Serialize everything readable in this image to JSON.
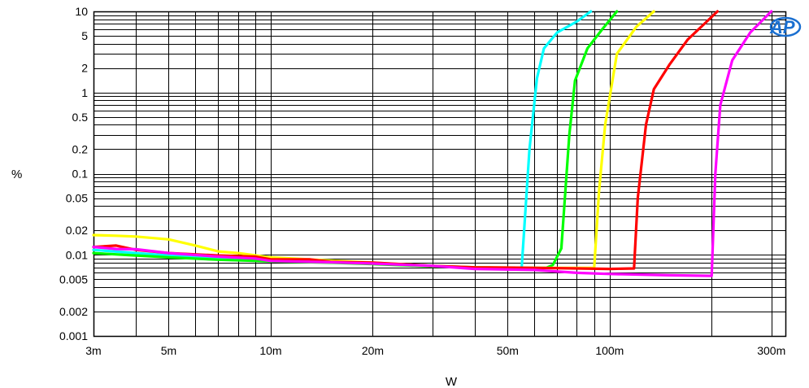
{
  "chart_data": {
    "type": "line",
    "xscale": "log",
    "yscale": "log",
    "xlim": [
      0.003,
      0.33
    ],
    "ylim": [
      0.001,
      10
    ],
    "xlabel": "W",
    "ylabel": "%",
    "grid": true,
    "legend": "none",
    "logo": "AP",
    "x_ticks": [
      {
        "value": 0.003,
        "label": "3m"
      },
      {
        "value": 0.005,
        "label": "5m"
      },
      {
        "value": 0.01,
        "label": "10m"
      },
      {
        "value": 0.02,
        "label": "20m"
      },
      {
        "value": 0.05,
        "label": "50m"
      },
      {
        "value": 0.1,
        "label": "100m"
      },
      {
        "value": 0.3,
        "label": "300m"
      }
    ],
    "y_ticks": [
      {
        "value": 10,
        "label": "10"
      },
      {
        "value": 5,
        "label": "5"
      },
      {
        "value": 2,
        "label": "2"
      },
      {
        "value": 1,
        "label": "1"
      },
      {
        "value": 0.5,
        "label": "0.5"
      },
      {
        "value": 0.2,
        "label": "0.2"
      },
      {
        "value": 0.1,
        "label": "0.1"
      },
      {
        "value": 0.05,
        "label": "0.05"
      },
      {
        "value": 0.02,
        "label": "0.02"
      },
      {
        "value": 0.01,
        "label": "0.01"
      },
      {
        "value": 0.005,
        "label": "0.005"
      },
      {
        "value": 0.002,
        "label": "0.002"
      },
      {
        "value": 0.001,
        "label": "0.001"
      }
    ],
    "series": [
      {
        "color": "#00ffff",
        "points": [
          [
            0.003,
            0.0115
          ],
          [
            0.004,
            0.0105
          ],
          [
            0.005,
            0.0098
          ],
          [
            0.007,
            0.0092
          ],
          [
            0.01,
            0.0087
          ],
          [
            0.015,
            0.0082
          ],
          [
            0.02,
            0.0078
          ],
          [
            0.03,
            0.0073
          ],
          [
            0.04,
            0.007
          ],
          [
            0.05,
            0.0069
          ],
          [
            0.055,
            0.0069
          ],
          [
            0.058,
            0.2
          ],
          [
            0.061,
            1.5
          ],
          [
            0.064,
            3.5
          ],
          [
            0.07,
            5.5
          ],
          [
            0.08,
            7.5
          ],
          [
            0.088,
            10
          ]
        ]
      },
      {
        "color": "#00ff00",
        "points": [
          [
            0.003,
            0.0105
          ],
          [
            0.004,
            0.0098
          ],
          [
            0.005,
            0.0093
          ],
          [
            0.007,
            0.0087
          ],
          [
            0.01,
            0.0083
          ],
          [
            0.015,
            0.008
          ],
          [
            0.02,
            0.0077
          ],
          [
            0.03,
            0.0072
          ],
          [
            0.04,
            0.007
          ],
          [
            0.05,
            0.0069
          ],
          [
            0.065,
            0.0069
          ],
          [
            0.068,
            0.0075
          ],
          [
            0.072,
            0.012
          ],
          [
            0.076,
            0.3
          ],
          [
            0.079,
            1.4
          ],
          [
            0.086,
            3.5
          ],
          [
            0.095,
            6
          ],
          [
            0.105,
            10
          ]
        ]
      },
      {
        "color": "#ffff00",
        "points": [
          [
            0.003,
            0.0175
          ],
          [
            0.0035,
            0.0172
          ],
          [
            0.004,
            0.0168
          ],
          [
            0.005,
            0.0155
          ],
          [
            0.006,
            0.013
          ],
          [
            0.007,
            0.011
          ],
          [
            0.008,
            0.0105
          ],
          [
            0.01,
            0.0093
          ],
          [
            0.015,
            0.0085
          ],
          [
            0.02,
            0.008
          ],
          [
            0.03,
            0.0073
          ],
          [
            0.04,
            0.007
          ],
          [
            0.06,
            0.0069
          ],
          [
            0.08,
            0.0069
          ],
          [
            0.09,
            0.0069
          ],
          [
            0.093,
            0.06
          ],
          [
            0.097,
            0.4
          ],
          [
            0.105,
            3
          ],
          [
            0.12,
            6.5
          ],
          [
            0.135,
            10
          ]
        ]
      },
      {
        "color": "#ff0000",
        "points": [
          [
            0.003,
            0.0125
          ],
          [
            0.0035,
            0.013
          ],
          [
            0.004,
            0.0115
          ],
          [
            0.005,
            0.0105
          ],
          [
            0.007,
            0.0098
          ],
          [
            0.009,
            0.0095
          ],
          [
            0.01,
            0.0088
          ],
          [
            0.013,
            0.0088
          ],
          [
            0.015,
            0.0082
          ],
          [
            0.02,
            0.008
          ],
          [
            0.03,
            0.0073
          ],
          [
            0.04,
            0.007
          ],
          [
            0.06,
            0.0069
          ],
          [
            0.08,
            0.0068
          ],
          [
            0.1,
            0.0067
          ],
          [
            0.118,
            0.0068
          ],
          [
            0.121,
            0.05
          ],
          [
            0.128,
            0.4
          ],
          [
            0.135,
            1.1
          ],
          [
            0.15,
            2.2
          ],
          [
            0.17,
            4.5
          ],
          [
            0.19,
            7
          ],
          [
            0.208,
            10
          ]
        ]
      },
      {
        "color": "#ff00ff",
        "points": [
          [
            0.003,
            0.0125
          ],
          [
            0.0035,
            0.0118
          ],
          [
            0.004,
            0.0117
          ],
          [
            0.005,
            0.0105
          ],
          [
            0.007,
            0.0095
          ],
          [
            0.009,
            0.009
          ],
          [
            0.01,
            0.0084
          ],
          [
            0.015,
            0.0081
          ],
          [
            0.02,
            0.0078
          ],
          [
            0.03,
            0.0073
          ],
          [
            0.04,
            0.0067
          ],
          [
            0.06,
            0.0065
          ],
          [
            0.08,
            0.006
          ],
          [
            0.1,
            0.0058
          ],
          [
            0.15,
            0.0056
          ],
          [
            0.2,
            0.0055
          ],
          [
            0.2,
            0.0055
          ],
          [
            0.205,
            0.1
          ],
          [
            0.212,
            0.7
          ],
          [
            0.23,
            2.5
          ],
          [
            0.26,
            5.5
          ],
          [
            0.3,
            10
          ]
        ]
      }
    ]
  }
}
